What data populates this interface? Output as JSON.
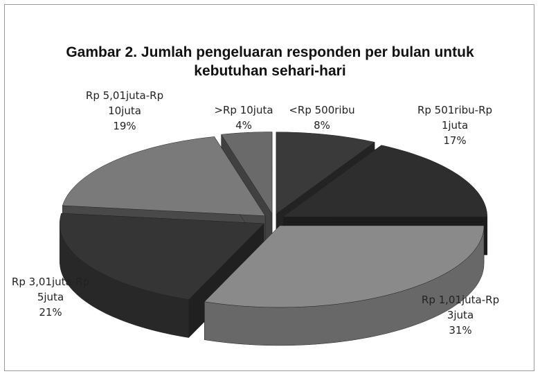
{
  "chart_data": {
    "type": "pie3d",
    "title": "Gambar 2. Jumlah pengeluaran responden per bulan untuk kebutuhan sehari-hari",
    "categories": [
      "<Rp 500ribu",
      "Rp 501ribu-Rp 1juta",
      "Rp 1,01juta-Rp 3juta",
      "Rp 3,01juta-Rp 5juta",
      "Rp 5,01juta-Rp 10juta",
      ">Rp 10juta"
    ],
    "values": [
      8,
      17,
      31,
      21,
      19,
      4
    ],
    "value_labels": [
      "8%",
      "17%",
      "31%",
      "21%",
      "19%",
      "4%"
    ],
    "colors": [
      "#3a3a3a",
      "#2e2e2e",
      "#8a8a8a",
      "#353535",
      "#7a7a7a",
      "#6a6a6a"
    ]
  }
}
